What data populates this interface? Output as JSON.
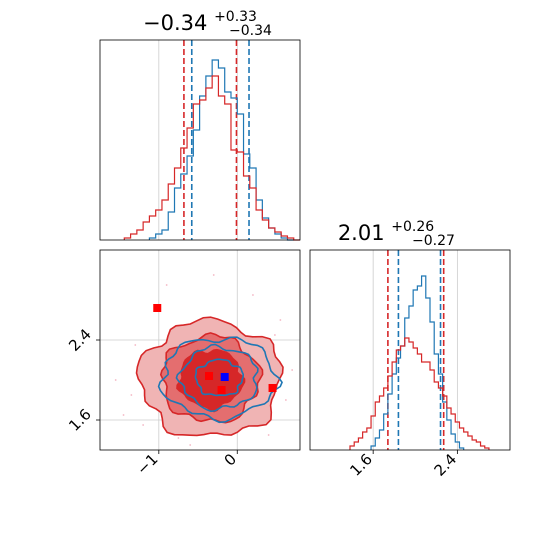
{
  "chart_data": [
    {
      "type": "histogram",
      "panel": "marginal-x",
      "title": {
        "base": "−0.34",
        "sup": "+0.33",
        "sub": "−0.34"
      },
      "x_range": [
        -1.75,
        0.8
      ],
      "ylim": [
        0,
        1.0
      ],
      "x_ticks": [
        -1,
        0
      ],
      "series": [
        {
          "color": "#1f77b4",
          "lines": [
            -0.58,
            0.15
          ],
          "bins_x": [
            -1.12,
            -1.04,
            -0.96,
            -0.88,
            -0.8,
            -0.72,
            -0.64,
            -0.56,
            -0.48,
            -0.4,
            -0.32,
            -0.24,
            -0.16,
            -0.08,
            0.0,
            0.08,
            0.16,
            0.24,
            0.32,
            0.4,
            0.48,
            0.56,
            0.64
          ],
          "counts": [
            0.01,
            0.03,
            0.05,
            0.14,
            0.26,
            0.33,
            0.42,
            0.55,
            0.72,
            0.82,
            0.9,
            0.86,
            0.74,
            0.71,
            0.63,
            0.43,
            0.36,
            0.2,
            0.11,
            0.06,
            0.03,
            0.01,
            0.0
          ]
        },
        {
          "color": "#d62728",
          "lines": [
            -0.68,
            -0.01
          ],
          "bins_x": [
            -1.44,
            -1.36,
            -1.28,
            -1.2,
            -1.12,
            -1.04,
            -0.96,
            -0.88,
            -0.8,
            -0.72,
            -0.64,
            -0.56,
            -0.48,
            -0.4,
            -0.32,
            -0.24,
            -0.16,
            -0.08,
            0.0,
            0.08,
            0.16,
            0.24,
            0.32,
            0.4,
            0.48,
            0.56,
            0.64,
            0.72
          ],
          "counts": [
            0.01,
            0.03,
            0.05,
            0.09,
            0.12,
            0.15,
            0.2,
            0.28,
            0.36,
            0.46,
            0.56,
            0.68,
            0.7,
            0.76,
            0.82,
            0.72,
            0.68,
            0.45,
            0.44,
            0.32,
            0.26,
            0.15,
            0.1,
            0.06,
            0.04,
            0.02,
            0.01,
            0.0
          ]
        }
      ]
    },
    {
      "type": "contour",
      "panel": "joint",
      "x_range": [
        -1.75,
        0.8
      ],
      "y_range": [
        1.3,
        3.3
      ],
      "x_ticks": [
        -1,
        0
      ],
      "y_ticks": [
        1.6,
        2.4
      ],
      "series": [
        {
          "color": "#d62728",
          "center": [
            -0.34,
            2.01
          ],
          "levels": [
            [
              0.4,
              0.29
            ],
            [
              0.62,
              0.43
            ],
            [
              0.9,
              0.58
            ]
          ]
        },
        {
          "color": "#1f77b4",
          "center": [
            -0.23,
            2.02
          ],
          "levels": [
            [
              0.3,
              0.18
            ],
            [
              0.49,
              0.31
            ],
            [
              0.73,
              0.4
            ]
          ]
        }
      ],
      "markers": [
        {
          "color": "#ff0000",
          "x": -1.02,
          "y": 2.72
        },
        {
          "color": "#ff0000",
          "x": -0.36,
          "y": 2.04
        },
        {
          "color": "#ff0000",
          "x": -0.2,
          "y": 1.9
        },
        {
          "color": "#ff0000",
          "x": 0.45,
          "y": 1.92
        },
        {
          "color": "#0000ff",
          "x": -0.16,
          "y": 2.03
        }
      ]
    },
    {
      "type": "histogram",
      "panel": "marginal-y",
      "title": {
        "base": "2.01",
        "sup": "+0.26",
        "sub": "−0.27"
      },
      "x_range": [
        1.0,
        2.9
      ],
      "ylim": [
        0,
        1.0
      ],
      "x_ticks": [
        1.6,
        2.4
      ],
      "series": [
        {
          "color": "#1f77b4",
          "lines": [
            1.84,
            2.24
          ],
          "bins_x": [
            1.58,
            1.62,
            1.66,
            1.7,
            1.74,
            1.78,
            1.82,
            1.86,
            1.9,
            1.94,
            1.98,
            2.02,
            2.06,
            2.1,
            2.14,
            2.18,
            2.22,
            2.26,
            2.3,
            2.34,
            2.38,
            2.42
          ],
          "counts": [
            0.02,
            0.06,
            0.1,
            0.18,
            0.28,
            0.38,
            0.46,
            0.52,
            0.66,
            0.72,
            0.8,
            0.82,
            0.87,
            0.76,
            0.64,
            0.48,
            0.38,
            0.24,
            0.15,
            0.08,
            0.04,
            0.01
          ]
        },
        {
          "color": "#d62728",
          "lines": [
            1.74,
            2.27
          ],
          "bins_x": [
            1.38,
            1.42,
            1.46,
            1.5,
            1.54,
            1.58,
            1.62,
            1.66,
            1.7,
            1.74,
            1.78,
            1.82,
            1.86,
            1.9,
            1.94,
            1.98,
            2.02,
            2.06,
            2.1,
            2.14,
            2.18,
            2.22,
            2.26,
            2.3,
            2.34,
            2.38,
            2.42,
            2.46,
            2.5,
            2.54,
            2.58,
            2.62,
            2.66
          ],
          "counts": [
            0.02,
            0.04,
            0.06,
            0.09,
            0.11,
            0.17,
            0.24,
            0.27,
            0.31,
            0.37,
            0.44,
            0.5,
            0.52,
            0.56,
            0.54,
            0.51,
            0.48,
            0.44,
            0.44,
            0.4,
            0.34,
            0.31,
            0.27,
            0.21,
            0.18,
            0.14,
            0.11,
            0.09,
            0.07,
            0.05,
            0.04,
            0.02,
            0.01
          ]
        }
      ]
    }
  ]
}
